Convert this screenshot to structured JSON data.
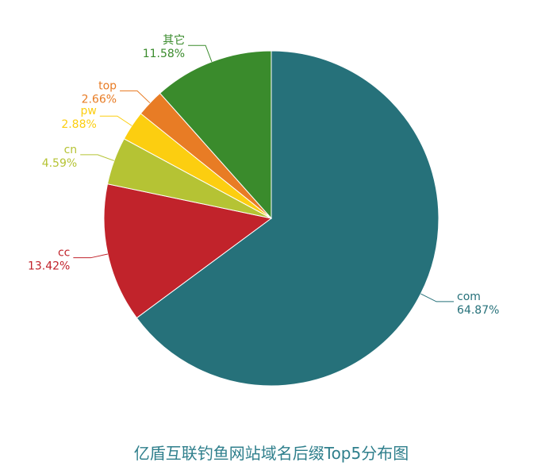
{
  "chart_data": {
    "type": "pie",
    "title": "亿盾互联钓鱼网站域名后缀Top5分布图",
    "categories": [
      "com",
      "cc",
      "cn",
      "pw",
      "top",
      "其它"
    ],
    "values": [
      64.87,
      13.42,
      4.59,
      2.88,
      2.66,
      11.58
    ],
    "value_labels": [
      "64.87%",
      "13.42%",
      "4.59%",
      "2.88%",
      "2.66%",
      "11.58%"
    ],
    "colors": [
      "#26717a",
      "#c1232b",
      "#b5c334",
      "#fcce10",
      "#e87c25",
      "#3a8b2c"
    ]
  }
}
